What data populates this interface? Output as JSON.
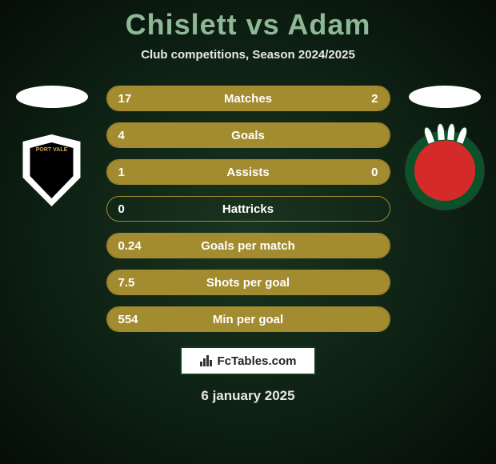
{
  "title": "Chislett vs Adam",
  "subtitle": "Club competitions, Season 2024/2025",
  "colors": {
    "accent": "#a38b2f",
    "title": "#8fb896",
    "text": "#ffffff",
    "bg_inner": "#1a3520",
    "bg_outer": "#050d08"
  },
  "bar_style": {
    "height": 32,
    "border_radius": 16,
    "border_width": 1.5,
    "gap": 14,
    "font_size": 15
  },
  "stats": [
    {
      "label": "Matches",
      "left_val": "17",
      "right_val": "2",
      "left_pct": 70,
      "right_pct": 30
    },
    {
      "label": "Goals",
      "left_val": "4",
      "right_val": "",
      "left_pct": 100,
      "right_pct": 0
    },
    {
      "label": "Assists",
      "left_val": "1",
      "right_val": "0",
      "left_pct": 100,
      "right_pct": 0
    },
    {
      "label": "Hattricks",
      "left_val": "0",
      "right_val": "",
      "left_pct": 0,
      "right_pct": 0
    },
    {
      "label": "Goals per match",
      "left_val": "0.24",
      "right_val": "",
      "left_pct": 100,
      "right_pct": 0
    },
    {
      "label": "Shots per goal",
      "left_val": "7.5",
      "right_val": "",
      "left_pct": 100,
      "right_pct": 0
    },
    {
      "label": "Min per goal",
      "left_val": "554",
      "right_val": "",
      "left_pct": 100,
      "right_pct": 0
    }
  ],
  "footer": {
    "brand": "FcTables.com"
  },
  "date": "6 january 2025",
  "teams": {
    "left": {
      "name": "Port Vale",
      "colors": [
        "#000000",
        "#ffffff",
        "#d4a94a"
      ]
    },
    "right": {
      "name": "Wrexham",
      "colors": [
        "#d42a2a",
        "#0a5228",
        "#ffffff"
      ]
    }
  }
}
